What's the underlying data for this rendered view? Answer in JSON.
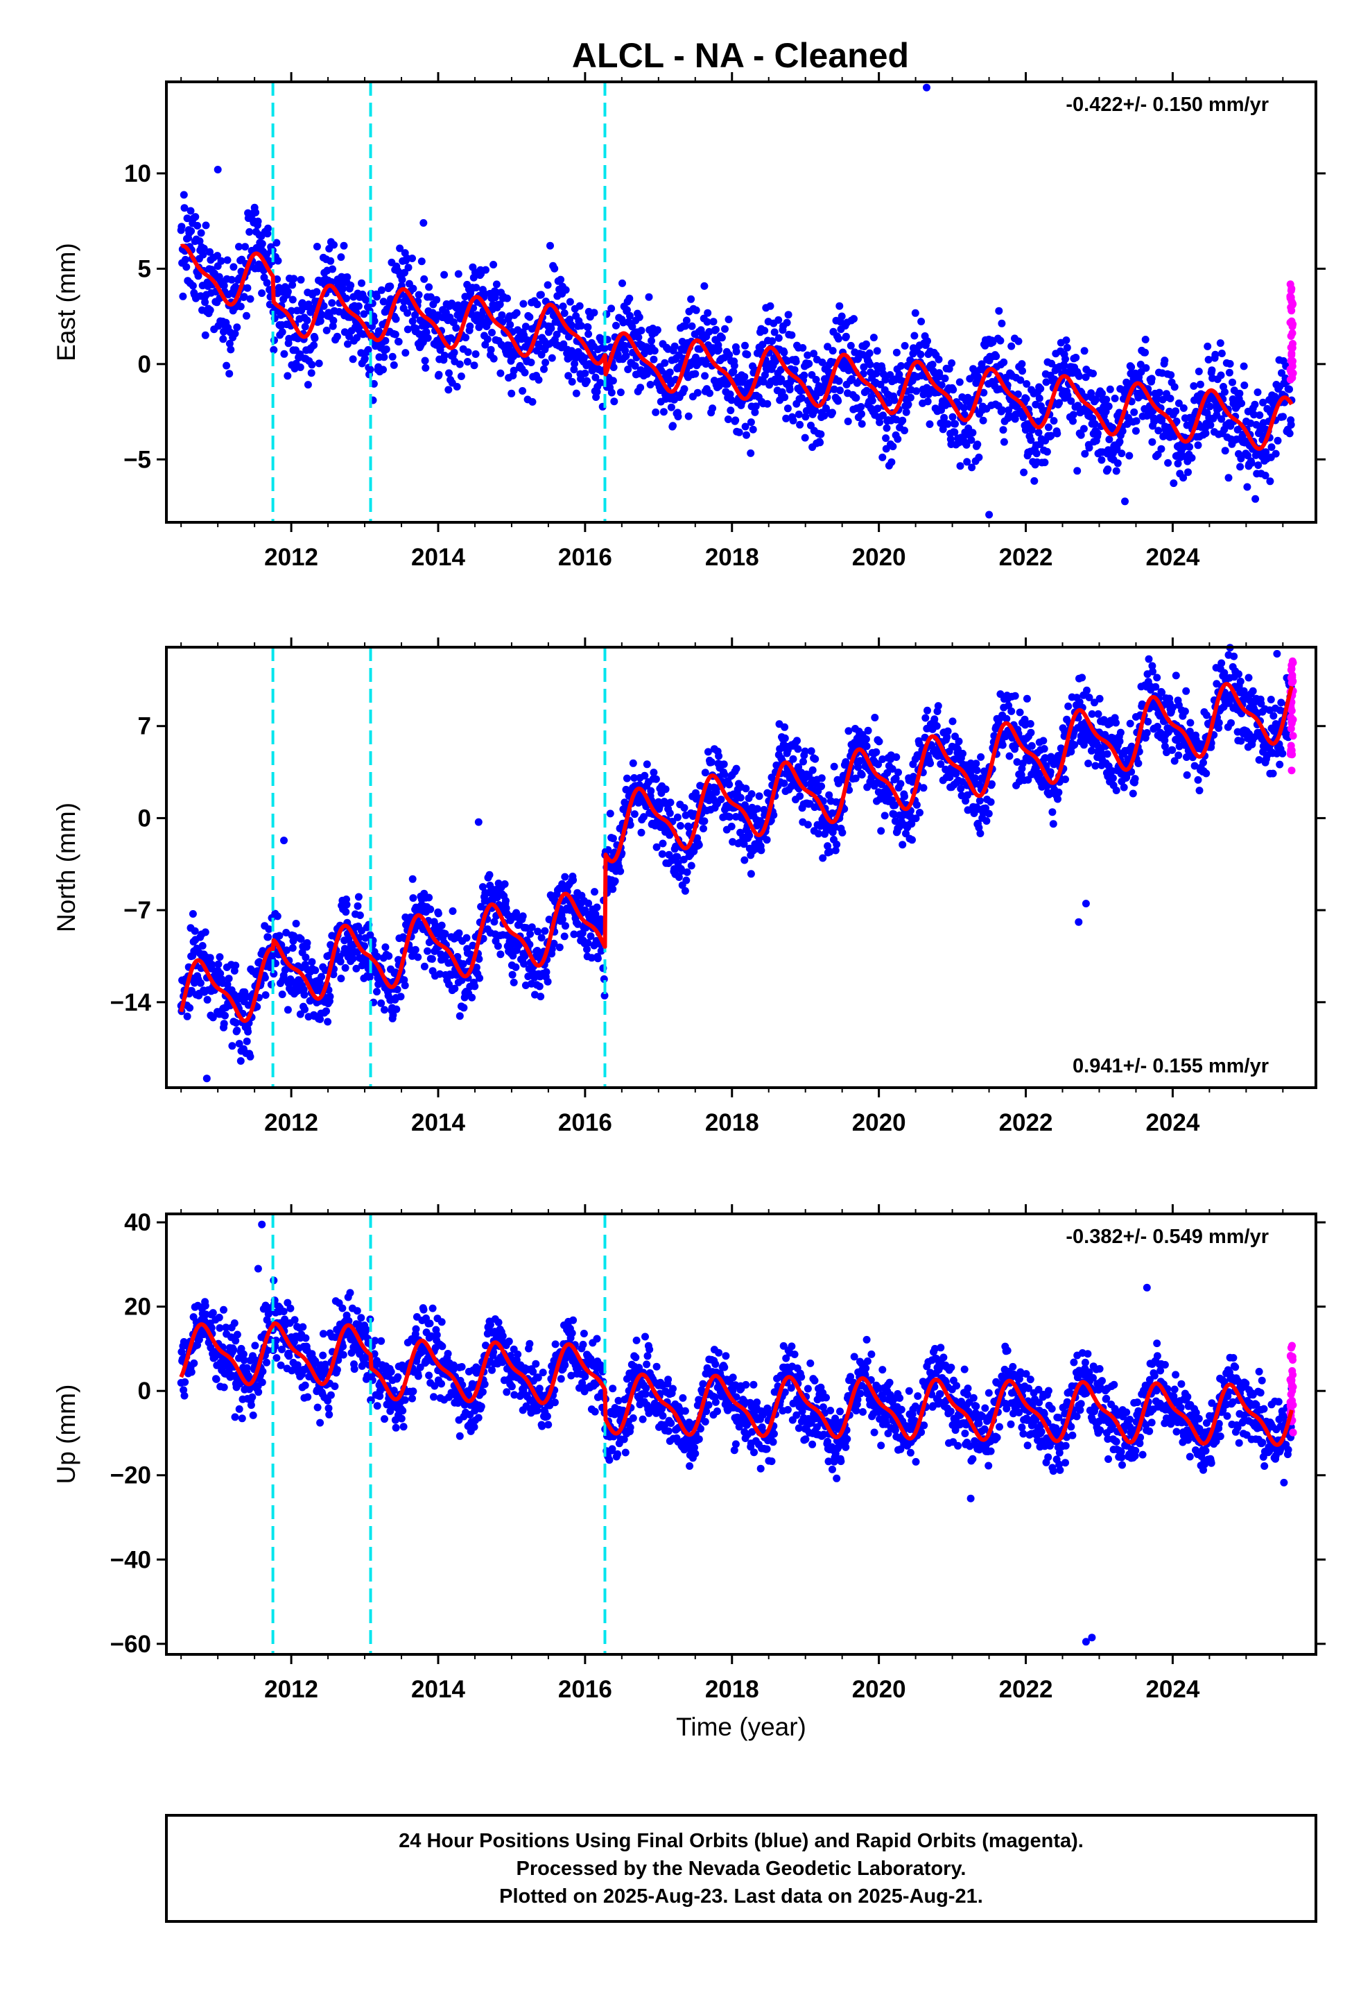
{
  "title": "ALCL  - NA - Cleaned",
  "colors": {
    "final_orbits": "#0000ff",
    "rapid_orbits": "#ff00ff",
    "model_fit": "#ff0000",
    "equipment_change": "#00e5ee"
  },
  "chart_data": [
    {
      "type": "scatter",
      "name": "east",
      "ylabel": "East (mm)",
      "xlabel": "",
      "xlim": [
        2010.3,
        2025.95
      ],
      "ylim": [
        -8.3,
        14.8
      ],
      "xticks": [
        2012,
        2014,
        2016,
        2018,
        2020,
        2022,
        2024
      ],
      "xtick_labels": [
        "2012",
        "2014",
        "2016",
        "2018",
        "2020",
        "2022",
        "2024"
      ],
      "yticks": [
        -5,
        0,
        5,
        10
      ],
      "ytick_labels": [
        "−5",
        "0",
        "5",
        "10"
      ],
      "rate_label": "-0.422+/- 0.150 mm/yr",
      "rate_position": "top-right",
      "breaks": [
        2011.75,
        2013.08,
        2016.27
      ],
      "model": {
        "start": 2010.5,
        "end": 2025.62,
        "amplitude": 1.2,
        "phase": 0.35,
        "segments": [
          {
            "from": 2010.5,
            "to": 2011.75,
            "start_value": 4.8,
            "end_value": 4.3
          },
          {
            "from": 2011.75,
            "to": 2013.08,
            "start_value": 3.0,
            "end_value": 2.5
          },
          {
            "from": 2013.08,
            "to": 2016.27,
            "start_value": 2.7,
            "end_value": 1.4
          },
          {
            "from": 2016.27,
            "to": 2025.62,
            "start_value": 0.3,
            "end_value": -3.2
          }
        ]
      },
      "scatter": 1.3,
      "outliers": [
        [
          2020.65,
          14.5
        ],
        [
          2021.5,
          -7.9
        ],
        [
          2011.0,
          10.2
        ],
        [
          2013.8,
          7.4
        ],
        [
          2022.7,
          -5.6
        ],
        [
          2023.35,
          -7.2
        ]
      ],
      "rapid": {
        "from": 2025.6,
        "to": 2025.64,
        "min": -1.0,
        "max": 4.3
      }
    },
    {
      "type": "scatter",
      "name": "north",
      "ylabel": "North (mm)",
      "xlabel": "",
      "xlim": [
        2010.3,
        2025.95
      ],
      "ylim": [
        -20.5,
        13.0
      ],
      "xticks": [
        2012,
        2014,
        2016,
        2018,
        2020,
        2022,
        2024
      ],
      "xtick_labels": [
        "2012",
        "2014",
        "2016",
        "2018",
        "2020",
        "2022",
        "2024"
      ],
      "yticks": [
        -14,
        -7,
        0,
        7
      ],
      "ytick_labels": [
        "−14",
        "−7",
        "0",
        "7"
      ],
      "rate_label": "0.941+/- 0.155 mm/yr",
      "rate_position": "bottom-right",
      "breaks": [
        2011.75,
        2013.08,
        2016.27
      ],
      "model": {
        "start": 2010.5,
        "end": 2025.62,
        "amplitude": 2.2,
        "phase": 0.55,
        "segments": [
          {
            "from": 2010.5,
            "to": 2011.75,
            "start_value": -13.6,
            "end_value": -12.5
          },
          {
            "from": 2011.75,
            "to": 2013.08,
            "start_value": -11.8,
            "end_value": -10.4
          },
          {
            "from": 2013.08,
            "to": 2016.27,
            "start_value": -10.5,
            "end_value": -7.9
          },
          {
            "from": 2016.27,
            "to": 2025.62,
            "start_value": -0.8,
            "end_value": 8.5
          }
        ]
      },
      "scatter": 1.5,
      "outliers": [
        [
          2011.9,
          -1.7
        ],
        [
          2014.55,
          -0.3
        ],
        [
          2022.72,
          -7.9
        ],
        [
          2022.82,
          -6.5
        ],
        [
          2010.85,
          -19.8
        ],
        [
          2025.42,
          12.5
        ]
      ],
      "rapid": {
        "from": 2025.6,
        "to": 2025.64,
        "min": 3.5,
        "max": 12.0
      }
    },
    {
      "type": "scatter",
      "name": "up",
      "ylabel": "Up (mm)",
      "xlabel": "Time (year)",
      "xlim": [
        2010.3,
        2025.95
      ],
      "ylim": [
        -62.5,
        42.0
      ],
      "xticks": [
        2012,
        2014,
        2016,
        2018,
        2020,
        2022,
        2024
      ],
      "xtick_labels": [
        "2012",
        "2014",
        "2016",
        "2018",
        "2020",
        "2022",
        "2024"
      ],
      "yticks": [
        -60,
        -40,
        -20,
        0,
        20,
        40
      ],
      "ytick_labels": [
        "−60",
        "−40",
        "−20",
        "0",
        "20",
        "40"
      ],
      "rate_label": "-0.382+/- 0.549 mm/yr",
      "rate_position": "top-right",
      "breaks": [
        2011.75,
        2013.08,
        2016.27
      ],
      "model": {
        "start": 2010.5,
        "end": 2025.62,
        "amplitude": 6.0,
        "phase": 0.6,
        "segments": [
          {
            "from": 2010.5,
            "to": 2011.75,
            "start_value": 8.8,
            "end_value": 8.6
          },
          {
            "from": 2011.75,
            "to": 2013.08,
            "start_value": 9.0,
            "end_value": 8.4
          },
          {
            "from": 2013.08,
            "to": 2016.27,
            "start_value": 5.2,
            "end_value": 3.8
          },
          {
            "from": 2016.27,
            "to": 2025.62,
            "start_value": -3.0,
            "end_value": -5.8
          }
        ]
      },
      "scatter": 4.2,
      "outliers": [
        [
          2011.6,
          39.5
        ],
        [
          2011.55,
          29.0
        ],
        [
          2023.65,
          24.5
        ],
        [
          2022.82,
          -59.5
        ],
        [
          2022.9,
          -58.5
        ],
        [
          2021.25,
          -25.5
        ]
      ],
      "rapid": {
        "from": 2025.6,
        "to": 2025.64,
        "min": -10.0,
        "max": 12.0
      }
    }
  ],
  "footer": {
    "line1": "24 Hour Positions Using Final Orbits (blue) and Rapid Orbits (magenta).",
    "line2": "Processed by the Nevada Geodetic Laboratory.",
    "line3": "Plotted on 2025-Aug-23. Last data on 2025-Aug-21."
  }
}
